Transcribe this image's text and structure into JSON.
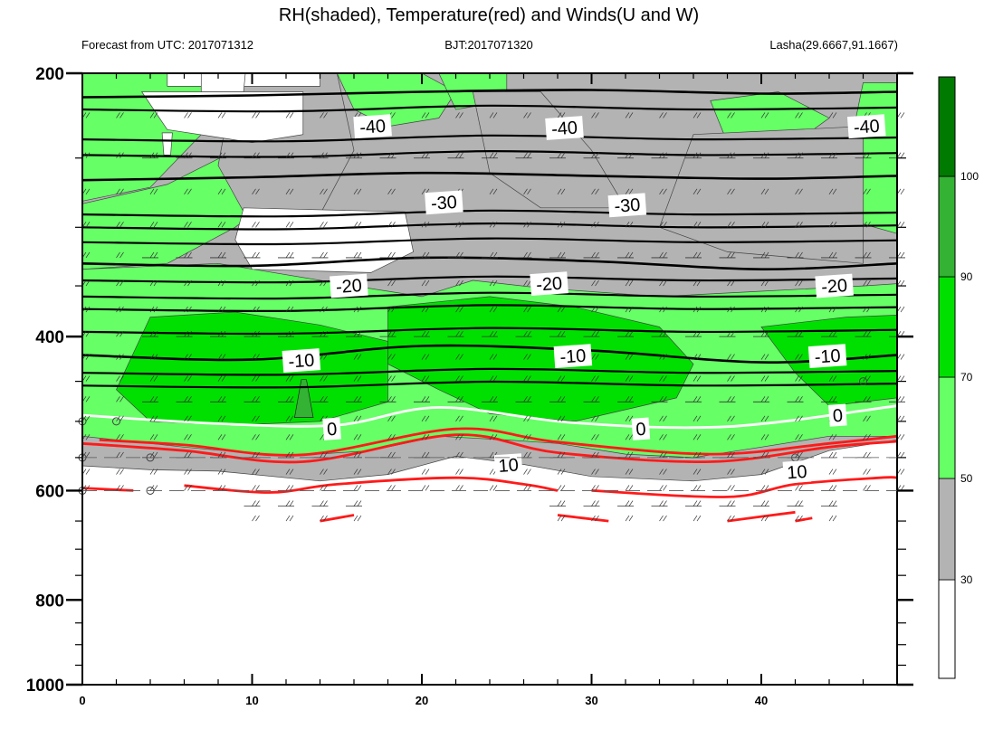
{
  "chart_data": {
    "type": "heatmap",
    "title": "RH(shaded), Temperature(red) and Winds(U and W)",
    "subtitle_left": "Forecast from UTC: 2017071312",
    "subtitle_center": "BJT:2017071320",
    "subtitle_right": "Lasha(29.6667,91.1667)",
    "xlim": [
      0,
      48
    ],
    "ylim": [
      200,
      1000
    ],
    "y_scale": "log",
    "y_reversed": true,
    "x_ticks": [
      "0",
      "10",
      "20",
      "30",
      "40"
    ],
    "y_ticks": [
      "200",
      "400",
      "600",
      "800",
      "1000"
    ],
    "colorbar_ticks": [
      "30",
      "50",
      "70",
      "90",
      "100"
    ],
    "colors": {
      "white": "#ffffff",
      "gray": "#b3b3b3",
      "light_green": "#66ff66",
      "green": "#00e000",
      "mid_green": "#33b233",
      "dark_green": "#007a00",
      "temp_line": "#ff1a1a",
      "black_line": "#000000",
      "zero_line": "#ffffff"
    },
    "rh_levels": [
      30,
      50,
      70,
      90,
      100
    ],
    "temperature_contours": [
      {
        "label": "-40",
        "color": "black",
        "points": [
          [
            0,
            213
          ],
          [
            10,
            212
          ],
          [
            20,
            210
          ],
          [
            30,
            209
          ],
          [
            40,
            211
          ],
          [
            48,
            210
          ]
        ]
      },
      {
        "label": "-30",
        "color": "black",
        "points": [
          [
            0,
            265
          ],
          [
            10,
            263
          ],
          [
            20,
            260
          ],
          [
            30,
            262
          ],
          [
            40,
            264
          ],
          [
            48,
            262
          ]
        ]
      },
      {
        "label": "-20",
        "color": "black",
        "points": [
          [
            0,
            330
          ],
          [
            10,
            332
          ],
          [
            20,
            325
          ],
          [
            30,
            328
          ],
          [
            40,
            335
          ],
          [
            48,
            330
          ]
        ]
      },
      {
        "label": "-10",
        "color": "black",
        "points": [
          [
            0,
            420
          ],
          [
            10,
            425
          ],
          [
            20,
            410
          ],
          [
            30,
            415
          ],
          [
            40,
            428
          ],
          [
            48,
            420
          ]
        ]
      },
      {
        "label": "0",
        "color": "white",
        "points": [
          [
            0,
            492
          ],
          [
            8,
            503
          ],
          [
            15,
            505
          ],
          [
            21,
            482
          ],
          [
            29,
            502
          ],
          [
            38,
            507
          ],
          [
            48,
            480
          ]
        ]
      },
      {
        "label": "10",
        "color": "red",
        "points": [
          [
            0,
            530
          ],
          [
            6,
            540
          ],
          [
            13,
            556
          ],
          [
            22,
            518
          ],
          [
            28,
            543
          ],
          [
            37,
            556
          ],
          [
            44,
            535
          ],
          [
            48,
            527
          ]
        ]
      }
    ],
    "temperature_labels": [
      {
        "text": "-40",
        "x": 17.1,
        "y": 230
      },
      {
        "text": "-40",
        "x": 28.4,
        "y": 231
      },
      {
        "text": "-40",
        "x": 46.2,
        "y": 230
      },
      {
        "text": "-30",
        "x": 21.3,
        "y": 281
      },
      {
        "text": "-30",
        "x": 32.1,
        "y": 283
      },
      {
        "text": "-20",
        "x": 15.7,
        "y": 350
      },
      {
        "text": "-20",
        "x": 27.5,
        "y": 348
      },
      {
        "text": "-20",
        "x": 44.3,
        "y": 350
      },
      {
        "text": "-10",
        "x": 12.9,
        "y": 426
      },
      {
        "text": "-10",
        "x": 28.9,
        "y": 421
      },
      {
        "text": "-10",
        "x": 43.9,
        "y": 421
      },
      {
        "text": "0",
        "x": 14.7,
        "y": 510
      },
      {
        "text": "0",
        "x": 32.9,
        "y": 510
      },
      {
        "text": "0",
        "x": 44.5,
        "y": 492
      },
      {
        "text": "10",
        "x": 25.1,
        "y": 561
      },
      {
        "text": "10",
        "x": 42.1,
        "y": 571
      }
    ]
  }
}
